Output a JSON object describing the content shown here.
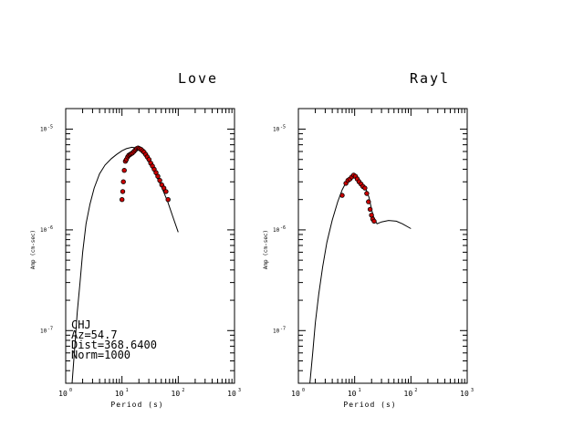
{
  "chart_data": [
    {
      "type": "line",
      "title": "Love",
      "xlabel": "Period (s)",
      "ylabel": "Amp (cm-sec)",
      "x_scale": "log",
      "y_scale": "log",
      "xlim": [
        1,
        1000
      ],
      "ylim": [
        3e-08,
        1.6e-05
      ],
      "x_ticks": [
        {
          "base": "10",
          "exp": "0"
        },
        {
          "base": "10",
          "exp": "1"
        },
        {
          "base": "10",
          "exp": "2"
        },
        {
          "base": "10",
          "exp": "3"
        }
      ],
      "y_ticks": [
        {
          "base": "10",
          "exp": "-7",
          "value": 1e-07
        },
        {
          "base": "10",
          "exp": "-6",
          "value": 1e-06
        },
        {
          "base": "10",
          "exp": "-5",
          "value": 1e-05
        }
      ],
      "annotations": [
        "CHJ",
        "Az=54.7",
        "Dist=368.6400",
        "Norm=1000"
      ],
      "series": [
        {
          "kind": "line",
          "color": "#000000",
          "x": [
            1.3,
            1.45,
            1.6,
            1.8,
            2.0,
            2.3,
            2.7,
            3.2,
            4.0,
            5.0,
            6.5,
            8.0,
            10,
            12,
            15,
            18,
            21,
            25,
            30,
            38,
            50,
            65,
            80,
            100
          ],
          "y": [
            3e-08,
            7e-08,
            1.5e-07,
            3e-07,
            6e-07,
            1.15e-06,
            1.8e-06,
            2.6e-06,
            3.6e-06,
            4.4e-06,
            5.1e-06,
            5.6e-06,
            6.1e-06,
            6.4e-06,
            6.6e-06,
            6.5e-06,
            6.1e-06,
            5.5e-06,
            4.7e-06,
            3.7e-06,
            2.7e-06,
            1.9e-06,
            1.35e-06,
            9.5e-07
          ]
        },
        {
          "kind": "scatter",
          "color": "#cc0000",
          "x": [
            10.0,
            10.3,
            10.6,
            11.0,
            11.5,
            12.0,
            12.6,
            13.2,
            13.9,
            14.6,
            15.4,
            16.3,
            17.2,
            18.2,
            19.3,
            20.5,
            21.8,
            23.2,
            24.7,
            26.4,
            28.2,
            30.2,
            32.4,
            34.8,
            37.4,
            40.3,
            43.5,
            47.0,
            51.0,
            55.5,
            60.5,
            66.0
          ],
          "y": [
            2e-06,
            2.4e-06,
            3e-06,
            3.9e-06,
            4.8e-06,
            5e-06,
            5.3e-06,
            5.5e-06,
            5.6e-06,
            5.7e-06,
            5.8e-06,
            6e-06,
            6.2e-06,
            6.4e-06,
            6.5e-06,
            6.4e-06,
            6.3e-06,
            6.1e-06,
            5.9e-06,
            5.6e-06,
            5.3e-06,
            5e-06,
            4.6e-06,
            4.3e-06,
            4e-06,
            3.7e-06,
            3.4e-06,
            3.1e-06,
            2.8e-06,
            2.6e-06,
            2.4e-06,
            2e-06
          ]
        }
      ]
    },
    {
      "type": "line",
      "title": "Rayl",
      "xlabel": "Period (s)",
      "ylabel": "Amp (cm-sec)",
      "x_scale": "log",
      "y_scale": "log",
      "xlim": [
        1,
        1000
      ],
      "ylim": [
        3e-08,
        1.6e-05
      ],
      "x_ticks": [
        {
          "base": "10",
          "exp": "0"
        },
        {
          "base": "10",
          "exp": "1"
        },
        {
          "base": "10",
          "exp": "2"
        },
        {
          "base": "10",
          "exp": "3"
        }
      ],
      "y_ticks": [
        {
          "base": "10",
          "exp": "-7",
          "value": 1e-07
        },
        {
          "base": "10",
          "exp": "-6",
          "value": 1e-06
        },
        {
          "base": "10",
          "exp": "-5",
          "value": 1e-05
        }
      ],
      "annotations": [],
      "series": [
        {
          "kind": "line",
          "color": "#000000",
          "x": [
            1.6,
            1.8,
            2.0,
            2.3,
            2.7,
            3.2,
            4.0,
            5.0,
            6.0,
            7.0,
            8.0,
            9.0,
            10,
            11,
            12.5,
            14,
            16,
            18,
            20,
            22,
            25,
            30,
            40,
            55,
            70,
            100
          ],
          "y": [
            3e-08,
            6e-08,
            1.2e-07,
            2.3e-07,
            4.3e-07,
            7.5e-07,
            1.25e-06,
            1.9e-06,
            2.5e-06,
            2.95e-06,
            3.3e-06,
            3.5e-06,
            3.55e-06,
            3.45e-06,
            3.1e-06,
            2.8e-06,
            2.5e-06,
            2.1e-06,
            1.6e-06,
            1.3e-06,
            1.15e-06,
            1.2e-06,
            1.24e-06,
            1.22e-06,
            1.15e-06,
            1.03e-06
          ]
        },
        {
          "kind": "scatter",
          "color": "#cc0000",
          "x": [
            6.0,
            7.0,
            7.6,
            8.2,
            8.9,
            9.6,
            10.3,
            11.1,
            12.0,
            13.0,
            14.0,
            15.2,
            16.4,
            17.6,
            18.8,
            19.9,
            21.0,
            22.2
          ],
          "y": [
            2.2e-06,
            2.9e-06,
            3.1e-06,
            3.2e-06,
            3.35e-06,
            3.5e-06,
            3.4e-06,
            3.2e-06,
            3e-06,
            2.85e-06,
            2.7e-06,
            2.6e-06,
            2.3e-06,
            1.9e-06,
            1.6e-06,
            1.4e-06,
            1.28e-06,
            1.22e-06
          ]
        }
      ]
    }
  ]
}
